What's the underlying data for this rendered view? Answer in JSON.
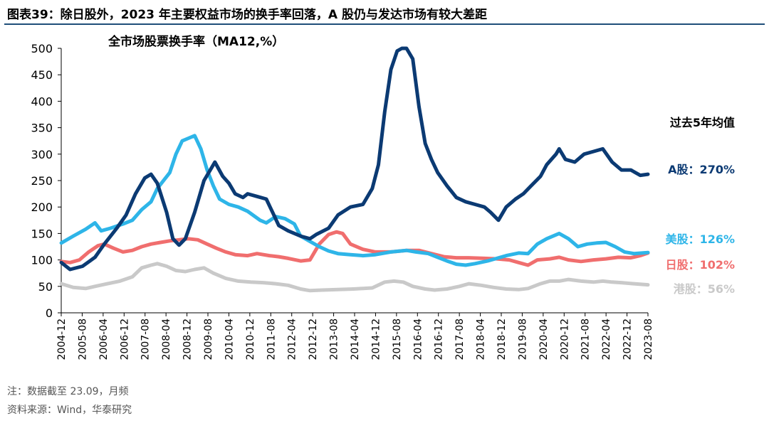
{
  "figure": {
    "title": "图表39：除日股外，2023 年主要权益市场的换手率回落，A 股仍与发达市场有较大差距",
    "note": "注：数据截至 23.09，月频",
    "source": "资料来源：Wind，华泰研究"
  },
  "chart_data": {
    "type": "line",
    "title": "全市场股票换手率（MA12,%）",
    "ylim": [
      0,
      500
    ],
    "yticks": [
      "0",
      "50",
      "100",
      "150",
      "200",
      "250",
      "300",
      "350",
      "400",
      "450",
      "500"
    ],
    "xticks": [
      "2004-12",
      "2005-08",
      "2006-04",
      "2006-12",
      "2007-08",
      "2008-04",
      "2008-12",
      "2009-08",
      "2010-04",
      "2010-12",
      "2011-08",
      "2012-04",
      "2012-12",
      "2013-08",
      "2014-04",
      "2014-12",
      "2015-08",
      "2016-04",
      "2016-12",
      "2017-08",
      "2018-04",
      "2018-12",
      "2019-08",
      "2020-04",
      "2020-12",
      "2021-08",
      "2022-04",
      "2022-12",
      "2023-08"
    ],
    "x_range": [
      2004.917,
      2023.75
    ],
    "legend_header": "过去5年均值",
    "series": [
      {
        "name": "A股",
        "label": "A股：270%",
        "color": "#0b3a73",
        "points": [
          [
            2004.92,
            95
          ],
          [
            2005.2,
            82
          ],
          [
            2005.6,
            88
          ],
          [
            2006.0,
            105
          ],
          [
            2006.3,
            130
          ],
          [
            2006.7,
            160
          ],
          [
            2007.0,
            185
          ],
          [
            2007.3,
            225
          ],
          [
            2007.6,
            255
          ],
          [
            2007.8,
            262
          ],
          [
            2008.0,
            245
          ],
          [
            2008.3,
            190
          ],
          [
            2008.5,
            140
          ],
          [
            2008.7,
            128
          ],
          [
            2008.9,
            140
          ],
          [
            2009.2,
            190
          ],
          [
            2009.5,
            250
          ],
          [
            2009.75,
            275
          ],
          [
            2009.85,
            285
          ],
          [
            2010.1,
            258
          ],
          [
            2010.3,
            245
          ],
          [
            2010.5,
            225
          ],
          [
            2010.75,
            218
          ],
          [
            2010.9,
            225
          ],
          [
            2011.2,
            220
          ],
          [
            2011.5,
            215
          ],
          [
            2011.7,
            190
          ],
          [
            2011.9,
            165
          ],
          [
            2012.2,
            155
          ],
          [
            2012.6,
            145
          ],
          [
            2012.9,
            140
          ],
          [
            2013.1,
            148
          ],
          [
            2013.5,
            160
          ],
          [
            2013.8,
            185
          ],
          [
            2014.2,
            200
          ],
          [
            2014.6,
            205
          ],
          [
            2014.9,
            235
          ],
          [
            2015.1,
            280
          ],
          [
            2015.3,
            380
          ],
          [
            2015.5,
            460
          ],
          [
            2015.7,
            495
          ],
          [
            2015.85,
            500
          ],
          [
            2016.0,
            500
          ],
          [
            2016.2,
            480
          ],
          [
            2016.4,
            390
          ],
          [
            2016.6,
            320
          ],
          [
            2016.8,
            290
          ],
          [
            2017.0,
            265
          ],
          [
            2017.3,
            240
          ],
          [
            2017.6,
            218
          ],
          [
            2017.9,
            210
          ],
          [
            2018.2,
            205
          ],
          [
            2018.5,
            200
          ],
          [
            2018.7,
            190
          ],
          [
            2018.95,
            175
          ],
          [
            2019.2,
            200
          ],
          [
            2019.5,
            215
          ],
          [
            2019.75,
            225
          ],
          [
            2020.0,
            240
          ],
          [
            2020.3,
            258
          ],
          [
            2020.5,
            280
          ],
          [
            2020.8,
            300
          ],
          [
            2020.9,
            310
          ],
          [
            2021.1,
            290
          ],
          [
            2021.4,
            285
          ],
          [
            2021.7,
            300
          ],
          [
            2022.0,
            305
          ],
          [
            2022.3,
            310
          ],
          [
            2022.6,
            285
          ],
          [
            2022.9,
            270
          ],
          [
            2023.2,
            270
          ],
          [
            2023.5,
            260
          ],
          [
            2023.75,
            262
          ]
        ]
      },
      {
        "name": "美股",
        "label": "美股：126%",
        "color": "#2eb5e8",
        "points": [
          [
            2004.92,
            132
          ],
          [
            2005.3,
            145
          ],
          [
            2005.7,
            158
          ],
          [
            2006.0,
            170
          ],
          [
            2006.2,
            155
          ],
          [
            2006.5,
            160
          ],
          [
            2006.9,
            168
          ],
          [
            2007.2,
            175
          ],
          [
            2007.5,
            195
          ],
          [
            2007.8,
            210
          ],
          [
            2008.0,
            235
          ],
          [
            2008.4,
            265
          ],
          [
            2008.6,
            300
          ],
          [
            2008.8,
            325
          ],
          [
            2009.0,
            330
          ],
          [
            2009.2,
            335
          ],
          [
            2009.4,
            310
          ],
          [
            2009.6,
            270
          ],
          [
            2009.8,
            240
          ],
          [
            2010.0,
            215
          ],
          [
            2010.3,
            205
          ],
          [
            2010.6,
            200
          ],
          [
            2010.9,
            192
          ],
          [
            2011.3,
            175
          ],
          [
            2011.5,
            170
          ],
          [
            2011.8,
            182
          ],
          [
            2012.1,
            178
          ],
          [
            2012.4,
            168
          ],
          [
            2012.6,
            145
          ],
          [
            2012.9,
            135
          ],
          [
            2013.2,
            125
          ],
          [
            2013.5,
            117
          ],
          [
            2013.8,
            112
          ],
          [
            2014.2,
            110
          ],
          [
            2014.6,
            108
          ],
          [
            2015.0,
            110
          ],
          [
            2015.5,
            115
          ],
          [
            2016.0,
            118
          ],
          [
            2016.3,
            115
          ],
          [
            2016.7,
            112
          ],
          [
            2017.0,
            105
          ],
          [
            2017.3,
            98
          ],
          [
            2017.6,
            92
          ],
          [
            2017.9,
            90
          ],
          [
            2018.2,
            93
          ],
          [
            2018.6,
            98
          ],
          [
            2018.9,
            103
          ],
          [
            2019.2,
            108
          ],
          [
            2019.6,
            113
          ],
          [
            2019.9,
            112
          ],
          [
            2020.2,
            130
          ],
          [
            2020.5,
            140
          ],
          [
            2020.9,
            150
          ],
          [
            2021.2,
            140
          ],
          [
            2021.5,
            125
          ],
          [
            2021.8,
            130
          ],
          [
            2022.1,
            132
          ],
          [
            2022.4,
            133
          ],
          [
            2022.7,
            125
          ],
          [
            2023.0,
            115
          ],
          [
            2023.3,
            112
          ],
          [
            2023.75,
            114
          ]
        ]
      },
      {
        "name": "日股",
        "label": "日股：102%",
        "color": "#f06e6e",
        "points": [
          [
            2004.92,
            97
          ],
          [
            2005.2,
            95
          ],
          [
            2005.5,
            100
          ],
          [
            2005.8,
            115
          ],
          [
            2006.1,
            127
          ],
          [
            2006.3,
            130
          ],
          [
            2006.6,
            122
          ],
          [
            2006.9,
            115
          ],
          [
            2007.2,
            118
          ],
          [
            2007.5,
            125
          ],
          [
            2007.8,
            130
          ],
          [
            2008.1,
            133
          ],
          [
            2008.4,
            136
          ],
          [
            2008.7,
            138
          ],
          [
            2009.0,
            140
          ],
          [
            2009.3,
            138
          ],
          [
            2009.6,
            130
          ],
          [
            2009.9,
            122
          ],
          [
            2010.2,
            115
          ],
          [
            2010.5,
            110
          ],
          [
            2010.9,
            108
          ],
          [
            2011.2,
            112
          ],
          [
            2011.6,
            108
          ],
          [
            2011.9,
            106
          ],
          [
            2012.2,
            103
          ],
          [
            2012.6,
            98
          ],
          [
            2012.9,
            100
          ],
          [
            2013.2,
            130
          ],
          [
            2013.5,
            148
          ],
          [
            2013.75,
            153
          ],
          [
            2013.95,
            150
          ],
          [
            2014.2,
            130
          ],
          [
            2014.6,
            120
          ],
          [
            2015.0,
            115
          ],
          [
            2015.5,
            115
          ],
          [
            2016.0,
            118
          ],
          [
            2016.4,
            118
          ],
          [
            2016.8,
            112
          ],
          [
            2017.2,
            106
          ],
          [
            2017.6,
            104
          ],
          [
            2018.0,
            104
          ],
          [
            2018.5,
            103
          ],
          [
            2018.9,
            102
          ],
          [
            2019.3,
            100
          ],
          [
            2019.6,
            95
          ],
          [
            2019.9,
            90
          ],
          [
            2020.2,
            100
          ],
          [
            2020.6,
            102
          ],
          [
            2020.9,
            105
          ],
          [
            2021.2,
            100
          ],
          [
            2021.6,
            97
          ],
          [
            2022.0,
            100
          ],
          [
            2022.4,
            102
          ],
          [
            2022.8,
            105
          ],
          [
            2023.2,
            104
          ],
          [
            2023.5,
            108
          ],
          [
            2023.75,
            113
          ]
        ]
      },
      {
        "name": "港股",
        "label": "港股：56%",
        "color": "#c9c9c9",
        "points": [
          [
            2004.92,
            55
          ],
          [
            2005.3,
            48
          ],
          [
            2005.7,
            46
          ],
          [
            2006.0,
            50
          ],
          [
            2006.4,
            55
          ],
          [
            2006.8,
            60
          ],
          [
            2007.2,
            68
          ],
          [
            2007.5,
            85
          ],
          [
            2007.8,
            90
          ],
          [
            2008.0,
            93
          ],
          [
            2008.3,
            88
          ],
          [
            2008.6,
            80
          ],
          [
            2008.9,
            78
          ],
          [
            2009.2,
            82
          ],
          [
            2009.5,
            85
          ],
          [
            2009.8,
            75
          ],
          [
            2010.2,
            65
          ],
          [
            2010.6,
            60
          ],
          [
            2011.0,
            58
          ],
          [
            2011.4,
            57
          ],
          [
            2011.8,
            55
          ],
          [
            2012.2,
            52
          ],
          [
            2012.6,
            45
          ],
          [
            2012.9,
            42
          ],
          [
            2013.3,
            43
          ],
          [
            2013.8,
            44
          ],
          [
            2014.3,
            45
          ],
          [
            2014.9,
            47
          ],
          [
            2015.3,
            58
          ],
          [
            2015.6,
            60
          ],
          [
            2015.9,
            58
          ],
          [
            2016.2,
            50
          ],
          [
            2016.6,
            45
          ],
          [
            2016.9,
            43
          ],
          [
            2017.3,
            45
          ],
          [
            2017.7,
            50
          ],
          [
            2018.0,
            55
          ],
          [
            2018.4,
            52
          ],
          [
            2018.8,
            48
          ],
          [
            2019.2,
            45
          ],
          [
            2019.6,
            44
          ],
          [
            2019.9,
            46
          ],
          [
            2020.3,
            55
          ],
          [
            2020.6,
            60
          ],
          [
            2020.9,
            60
          ],
          [
            2021.2,
            63
          ],
          [
            2021.6,
            60
          ],
          [
            2022.0,
            58
          ],
          [
            2022.3,
            60
          ],
          [
            2022.6,
            58
          ],
          [
            2022.9,
            57
          ],
          [
            2023.3,
            55
          ],
          [
            2023.75,
            53
          ]
        ]
      }
    ]
  }
}
